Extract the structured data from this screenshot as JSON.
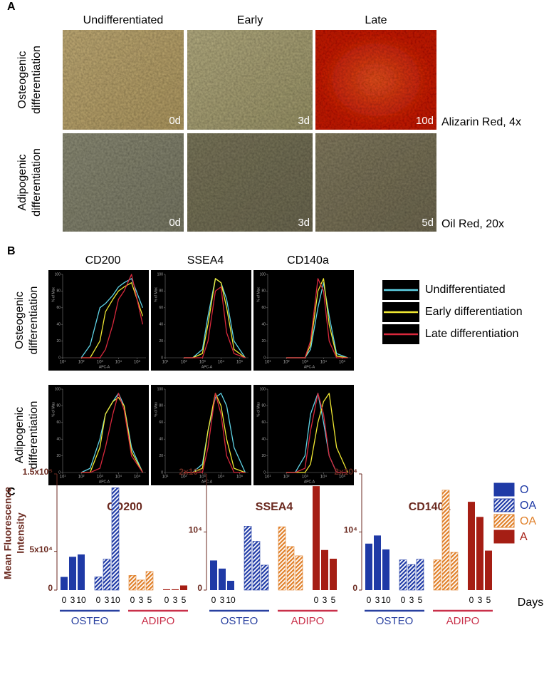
{
  "panel_a": {
    "label": "A",
    "columns": [
      "Undifferentiated",
      "Early",
      "Late"
    ],
    "rows": [
      {
        "label": [
          "Osteogenic",
          "differentiation"
        ],
        "days": [
          "0d",
          "3d",
          "10d"
        ],
        "stain": "Alizarin Red, 4x"
      },
      {
        "label": [
          "Adipogenic",
          "differentiation"
        ],
        "days": [
          "0d",
          "3d",
          "5d"
        ],
        "stain": "Oil Red, 20x"
      }
    ]
  },
  "panel_b": {
    "label": "B",
    "columns": [
      "CD200",
      "SSEA4",
      "CD140a"
    ],
    "rows": [
      [
        "Osteogenic",
        "differentiation"
      ],
      [
        "Adipogenic",
        "differentiation"
      ]
    ],
    "legend": [
      {
        "name": "Undifferentiated",
        "color": "#5fd3e6"
      },
      {
        "name": "Early differentiation",
        "color": "#f0e832"
      },
      {
        "name": "Late differentiation",
        "color": "#d8283c"
      }
    ],
    "x_label": "APC-A",
    "y_label": "% of Max"
  },
  "panel_c": {
    "label": "C",
    "y_label": [
      "Mean Fluorescence",
      "Intensity"
    ],
    "x_label": "Days",
    "legend": [
      {
        "name": "O",
        "color": "#1f3aa6",
        "hatch": false
      },
      {
        "name": "OA",
        "color": "#1f3aa6",
        "hatch": true
      },
      {
        "name": "OA",
        "color": "#e0802a",
        "hatch": true
      },
      {
        "name": "A",
        "color": "#a51e14",
        "hatch": false
      }
    ],
    "groups": [
      {
        "label": "OSTEO",
        "color": "#2940a0"
      },
      {
        "label": "ADIPO",
        "color": "#c9304a"
      }
    ]
  },
  "chart_data": [
    {
      "type": "line",
      "xscale": "log",
      "x": [
        100,
        300,
        1000,
        2000,
        5000,
        10000,
        20000,
        50000,
        200000
      ],
      "xlim": [
        10,
        300000
      ],
      "xticks": [
        {
          "value": 10,
          "label": "10¹"
        },
        {
          "value": 100,
          "label": "10²"
        },
        {
          "value": 1000,
          "label": "10³"
        },
        {
          "value": 10000,
          "label": "10⁴"
        },
        {
          "value": 100000,
          "label": "10⁵"
        }
      ],
      "ylim": [
        0,
        100
      ],
      "yticks": [
        0,
        20,
        40,
        60,
        80,
        100
      ],
      "series": [
        {
          "values": [
            0,
            15,
            60,
            65,
            75,
            85,
            90,
            95,
            60
          ]
        },
        {
          "values": [
            0,
            0,
            20,
            55,
            70,
            80,
            85,
            90,
            50
          ]
        },
        {
          "values": [
            0,
            0,
            0,
            10,
            40,
            70,
            80,
            100,
            40
          ]
        }
      ]
    },
    {
      "type": "line",
      "xscale": "log",
      "x": [
        100,
        300,
        1000,
        2000,
        5000,
        10000,
        20000,
        50000,
        200000
      ],
      "xlim": [
        10,
        300000
      ],
      "xticks": [
        {
          "value": 10,
          "label": "10¹"
        },
        {
          "value": 100,
          "label": "10²"
        },
        {
          "value": 1000,
          "label": "10³"
        },
        {
          "value": 10000,
          "label": "10⁴"
        },
        {
          "value": 100000,
          "label": "10⁵"
        }
      ],
      "ylim": [
        0,
        100
      ],
      "yticks": [
        0,
        20,
        40,
        60,
        80,
        100
      ],
      "series": [
        {
          "values": [
            0,
            0,
            10,
            50,
            95,
            90,
            70,
            20,
            0
          ]
        },
        {
          "values": [
            0,
            0,
            5,
            40,
            95,
            90,
            60,
            10,
            0
          ]
        },
        {
          "values": [
            0,
            0,
            0,
            20,
            80,
            85,
            30,
            5,
            0
          ]
        }
      ]
    },
    {
      "type": "line",
      "xscale": "log",
      "x": [
        100,
        300,
        1000,
        2000,
        5000,
        10000,
        20000,
        50000,
        200000
      ],
      "xlim": [
        10,
        300000
      ],
      "xticks": [
        {
          "value": 10,
          "label": "10¹"
        },
        {
          "value": 100,
          "label": "10²"
        },
        {
          "value": 1000,
          "label": "10³"
        },
        {
          "value": 10000,
          "label": "10⁴"
        },
        {
          "value": 100000,
          "label": "10⁵"
        }
      ],
      "ylim": [
        0,
        100
      ],
      "yticks": [
        0,
        20,
        40,
        60,
        80,
        100
      ],
      "series": [
        {
          "values": [
            0,
            0,
            0,
            10,
            60,
            90,
            50,
            5,
            0
          ]
        },
        {
          "values": [
            0,
            0,
            0,
            15,
            80,
            95,
            40,
            2,
            0
          ]
        },
        {
          "values": [
            0,
            0,
            0,
            20,
            95,
            80,
            20,
            0,
            0
          ]
        }
      ]
    },
    {
      "type": "line",
      "xscale": "log",
      "x": [
        100,
        300,
        1000,
        2000,
        5000,
        10000,
        20000,
        50000,
        200000
      ],
      "xlim": [
        10,
        300000
      ],
      "xticks": [
        {
          "value": 10,
          "label": "10¹"
        },
        {
          "value": 100,
          "label": "10²"
        },
        {
          "value": 1000,
          "label": "10³"
        },
        {
          "value": 10000,
          "label": "10⁴"
        },
        {
          "value": 100000,
          "label": "10⁵"
        }
      ],
      "ylim": [
        0,
        100
      ],
      "yticks": [
        0,
        20,
        40,
        60,
        80,
        100
      ],
      "series": [
        {
          "values": [
            0,
            5,
            40,
            70,
            85,
            95,
            80,
            30,
            0
          ]
        },
        {
          "values": [
            0,
            0,
            30,
            70,
            85,
            90,
            80,
            25,
            0
          ]
        },
        {
          "values": [
            0,
            0,
            5,
            30,
            70,
            95,
            75,
            20,
            0
          ]
        }
      ]
    },
    {
      "type": "line",
      "xscale": "log",
      "x": [
        100,
        300,
        1000,
        2000,
        5000,
        10000,
        20000,
        50000,
        200000
      ],
      "xlim": [
        10,
        300000
      ],
      "xticks": [
        {
          "value": 10,
          "label": "10¹"
        },
        {
          "value": 100,
          "label": "10²"
        },
        {
          "value": 1000,
          "label": "10³"
        },
        {
          "value": 10000,
          "label": "10⁴"
        },
        {
          "value": 100000,
          "label": "10⁵"
        }
      ],
      "ylim": [
        0,
        100
      ],
      "yticks": [
        0,
        20,
        40,
        60,
        80,
        100
      ],
      "series": [
        {
          "values": [
            0,
            0,
            10,
            50,
            90,
            95,
            80,
            30,
            0
          ]
        },
        {
          "values": [
            0,
            0,
            5,
            50,
            95,
            80,
            40,
            5,
            0
          ]
        },
        {
          "values": [
            0,
            0,
            0,
            30,
            95,
            70,
            20,
            0,
            0
          ]
        }
      ]
    },
    {
      "type": "line",
      "xscale": "log",
      "x": [
        100,
        300,
        1000,
        2000,
        5000,
        10000,
        20000,
        50000,
        200000
      ],
      "xlim": [
        10,
        300000
      ],
      "xticks": [
        {
          "value": 10,
          "label": "10¹"
        },
        {
          "value": 100,
          "label": "10²"
        },
        {
          "value": 1000,
          "label": "10³"
        },
        {
          "value": 10000,
          "label": "10⁴"
        },
        {
          "value": 100000,
          "label": "10⁵"
        }
      ],
      "ylim": [
        0,
        100
      ],
      "yticks": [
        0,
        20,
        40,
        60,
        80,
        100
      ],
      "series": [
        {
          "values": [
            0,
            0,
            20,
            70,
            95,
            60,
            20,
            0,
            0
          ]
        },
        {
          "values": [
            0,
            0,
            0,
            10,
            60,
            85,
            95,
            30,
            0
          ]
        },
        {
          "values": [
            0,
            0,
            5,
            50,
            95,
            70,
            20,
            0,
            0
          ]
        }
      ]
    },
    {
      "type": "bar",
      "title": "CD200",
      "categories": [
        "0",
        "3",
        "10",
        "0",
        "3",
        "10",
        "0",
        "3",
        "5",
        "0",
        "3",
        "5"
      ],
      "values": [
        17000,
        43000,
        46000,
        17000,
        40000,
        132000,
        19000,
        13000,
        24000,
        1000,
        1000,
        6000
      ],
      "ylim": [
        0,
        150000
      ],
      "yticks": [
        0,
        {
          "value": 50000,
          "label": "5x10⁴"
        },
        {
          "value": 150000,
          "label": "1.5x10⁵"
        }
      ]
    },
    {
      "type": "bar",
      "title": "SSEA4",
      "categories": [
        "0",
        "3",
        "10",
        null,
        null,
        null,
        null,
        null,
        null,
        "0",
        "3",
        "5"
      ],
      "values": [
        5100,
        3700,
        1600,
        11000,
        8400,
        4300,
        10900,
        7500,
        5900,
        17900,
        6900,
        5400
      ],
      "ylim": [
        0,
        20000
      ],
      "yticks": [
        0,
        {
          "value": 10000,
          "label": "10⁴"
        },
        {
          "value": 20000,
          "label": "2x10⁴"
        }
      ]
    },
    {
      "type": "bar",
      "title": "CD140a",
      "categories": [
        "0",
        "3",
        "10",
        "0",
        "3",
        "5",
        null,
        null,
        null,
        "0",
        "3",
        "5"
      ],
      "values": [
        8000,
        9400,
        7000,
        5200,
        4400,
        5300,
        5200,
        17200,
        6500,
        15200,
        12600,
        6800
      ],
      "ylim": [
        0,
        20000
      ],
      "yticks": [
        0,
        {
          "value": 10000,
          "label": "10⁴"
        },
        {
          "value": 20000,
          "label": "2x10⁴"
        }
      ]
    }
  ]
}
